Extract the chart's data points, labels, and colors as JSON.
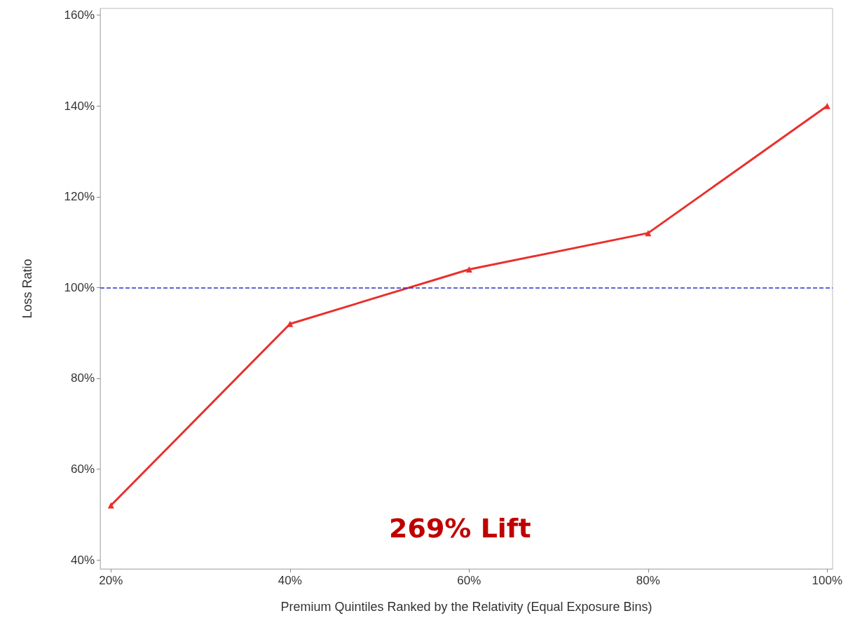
{
  "chart_data": {
    "type": "line",
    "xlabel": "Premium Quintiles Ranked by the Relativity (Equal Exposure Bins)",
    "ylabel": "Loss Ratio",
    "x": [
      20,
      40,
      60,
      80,
      100
    ],
    "series": [
      {
        "color": "#e8302c",
        "values": [
          52,
          92,
          104,
          112,
          140
        ]
      }
    ],
    "xlim": [
      18.8,
      100.6
    ],
    "xticks": [
      {
        "value": 20,
        "label": "20%"
      },
      {
        "value": 40,
        "label": "40%"
      },
      {
        "value": 60,
        "label": "60%"
      },
      {
        "value": 80,
        "label": "80%"
      },
      {
        "value": 100,
        "label": "100%"
      }
    ],
    "ylim": [
      38,
      161.5
    ],
    "yticks": [
      {
        "value": 40,
        "label": "40%"
      },
      {
        "value": 60,
        "label": "60%"
      },
      {
        "value": 80,
        "label": "80%"
      },
      {
        "value": 100,
        "label": "100%"
      },
      {
        "value": 120,
        "label": "120%"
      },
      {
        "value": 140,
        "label": "140%"
      },
      {
        "value": 160,
        "label": "160%"
      }
    ],
    "ref_lines": [
      {
        "axis": "y",
        "value": 100,
        "color": "#2e2ec8",
        "line_style": "dashed"
      }
    ],
    "annotations": [
      "269% Lift"
    ],
    "marker": "triangle",
    "line_style": "solid",
    "grid": false
  }
}
